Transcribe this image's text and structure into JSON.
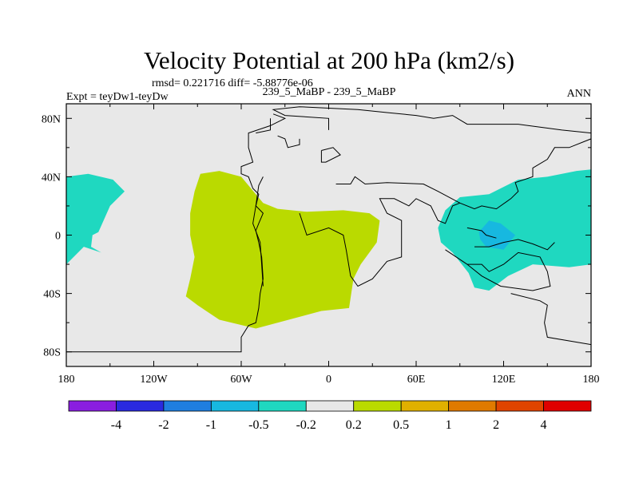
{
  "chart_data": {
    "type": "contour_map",
    "title": "Velocity Potential at 200 hPa (km2/s)",
    "stats": "rmsd= 0.221716  diff= -5.88776e-06",
    "left_label": "Expt = teyDw1-teyDw",
    "center_label": "239_5_MaBP - 239_5_MaBP",
    "right_label": "ANN",
    "x_ticks": [
      {
        "lon": -180,
        "label": "180"
      },
      {
        "lon": -120,
        "label": "120W"
      },
      {
        "lon": -60,
        "label": "60W"
      },
      {
        "lon": 0,
        "label": "0"
      },
      {
        "lon": 60,
        "label": "60E"
      },
      {
        "lon": 120,
        "label": "120E"
      },
      {
        "lon": 180,
        "label": "180"
      }
    ],
    "y_ticks": [
      {
        "lat": 80,
        "label": "80N"
      },
      {
        "lat": 40,
        "label": "40N"
      },
      {
        "lat": 0,
        "label": "0"
      },
      {
        "lat": -40,
        "label": "40S"
      },
      {
        "lat": -80,
        "label": "80S"
      }
    ],
    "xlim": [
      -180,
      180
    ],
    "ylim": [
      -90,
      90
    ],
    "colorbar": {
      "colors": [
        "#8a1ee0",
        "#2a2ae0",
        "#1f7ee0",
        "#17b8e0",
        "#1fd8c0",
        "#e8e8e8",
        "#bada00",
        "#e0b000",
        "#e07a00",
        "#e04400",
        "#e00000"
      ],
      "labels": [
        "-4",
        "-2",
        "-1",
        "-0.5",
        "-0.2",
        "0.2",
        "0.5",
        "1",
        "2",
        "4"
      ]
    },
    "field_colors": {
      "background": "#e8e8e8",
      "positive": "#bada00",
      "negative_weak": "#1fd8c0",
      "negative_mid": "#17b8e0"
    },
    "regions": [
      {
        "name": "positive-anomaly-atlantic",
        "level": "0.2 to 0.5",
        "color": "#bada00",
        "points": [
          [
            -88,
            42
          ],
          [
            -75,
            44
          ],
          [
            -60,
            40
          ],
          [
            -45,
            22
          ],
          [
            -35,
            18
          ],
          [
            -15,
            16
          ],
          [
            10,
            17
          ],
          [
            28,
            15
          ],
          [
            35,
            10
          ],
          [
            33,
            -5
          ],
          [
            22,
            -20
          ],
          [
            17,
            -30
          ],
          [
            14,
            -50
          ],
          [
            -5,
            -52
          ],
          [
            -50,
            -64
          ],
          [
            -75,
            -58
          ],
          [
            -90,
            -48
          ],
          [
            -98,
            -42
          ],
          [
            -95,
            -30
          ],
          [
            -92,
            -15
          ],
          [
            -95,
            0
          ],
          [
            -95,
            15
          ],
          [
            -92,
            30
          ]
        ]
      },
      {
        "name": "negative-anomaly-pacific-west",
        "level": "-0.5 to -0.2",
        "color": "#1fd8c0",
        "points": [
          [
            -180,
            40
          ],
          [
            -165,
            42
          ],
          [
            -148,
            38
          ],
          [
            -140,
            30
          ],
          [
            -150,
            20
          ],
          [
            -158,
            2
          ],
          [
            -162,
            0
          ],
          [
            -163,
            -8
          ],
          [
            -156,
            -12
          ],
          [
            -168,
            -8
          ],
          [
            -180,
            -20
          ]
        ]
      },
      {
        "name": "negative-anomaly-indo-pacific",
        "level": "-0.5 to -0.2",
        "color": "#1fd8c0",
        "points": [
          [
            75,
            5
          ],
          [
            80,
            17
          ],
          [
            90,
            26
          ],
          [
            110,
            28
          ],
          [
            130,
            38
          ],
          [
            150,
            40
          ],
          [
            170,
            44
          ],
          [
            180,
            45
          ],
          [
            180,
            -20
          ],
          [
            165,
            -22
          ],
          [
            140,
            -20
          ],
          [
            123,
            -28
          ],
          [
            110,
            -38
          ],
          [
            100,
            -36
          ],
          [
            96,
            -26
          ],
          [
            85,
            -12
          ],
          [
            77,
            -5
          ]
        ]
      },
      {
        "name": "negative-anomaly-maritime-core",
        "level": "-1 to -0.5",
        "color": "#17b8e0",
        "points": [
          [
            103,
            2
          ],
          [
            110,
            10
          ],
          [
            118,
            8
          ],
          [
            128,
            0
          ],
          [
            120,
            -10
          ],
          [
            108,
            -8
          ],
          [
            104,
            -3
          ]
        ]
      }
    ],
    "coastlines": [
      [
        [
          -180,
          -80
        ],
        [
          -60,
          -80
        ],
        [
          -60,
          -70
        ],
        [
          -55,
          -62
        ],
        [
          -50,
          -60
        ],
        [
          -48,
          -50
        ],
        [
          -47,
          -40
        ],
        [
          -45,
          -30
        ],
        [
          -46,
          -15
        ],
        [
          -48,
          -5
        ],
        [
          -50,
          3
        ],
        [
          -48,
          8
        ],
        [
          -45,
          15
        ],
        [
          -50,
          20
        ],
        [
          -48,
          28
        ],
        [
          -52,
          32
        ],
        [
          -55,
          40
        ],
        [
          -60,
          42
        ],
        [
          -60,
          47
        ],
        [
          -52,
          50
        ],
        [
          -55,
          60
        ],
        [
          -55,
          70
        ],
        [
          -40,
          75
        ],
        [
          -30,
          80
        ],
        [
          -38,
          83
        ]
      ],
      [
        [
          -45,
          40
        ],
        [
          -48,
          34
        ],
        [
          -50,
          20
        ],
        [
          -52,
          8
        ],
        [
          -47,
          -5
        ],
        [
          -46,
          -20
        ],
        [
          -45,
          -35
        ]
      ],
      [
        [
          -50,
          70
        ],
        [
          -40,
          72
        ],
        [
          -40,
          80
        ]
      ],
      [
        [
          -35,
          68
        ],
        [
          -30,
          66
        ],
        [
          -28,
          60
        ],
        [
          -20,
          62
        ],
        [
          -20,
          66
        ]
      ],
      [
        [
          0,
          72
        ],
        [
          0,
          80
        ],
        [
          -30,
          82
        ],
        [
          -38,
          86
        ],
        [
          -20,
          88
        ],
        [
          20,
          86
        ],
        [
          40,
          84
        ],
        [
          60,
          82
        ],
        [
          72,
          80
        ],
        [
          85,
          82
        ],
        [
          95,
          76
        ],
        [
          130,
          76
        ],
        [
          160,
          72
        ],
        [
          180,
          70
        ]
      ],
      [
        [
          -5,
          58
        ],
        [
          -5,
          50
        ],
        [
          -2,
          50
        ],
        [
          8,
          55
        ],
        [
          3,
          60
        ],
        [
          -5,
          58
        ]
      ],
      [
        [
          5,
          35
        ],
        [
          15,
          35
        ],
        [
          18,
          40
        ],
        [
          25,
          35
        ],
        [
          40,
          36
        ],
        [
          65,
          35
        ],
        [
          75,
          30
        ],
        [
          90,
          22
        ],
        [
          100,
          18
        ],
        [
          105,
          20
        ],
        [
          115,
          18
        ],
        [
          125,
          25
        ],
        [
          130,
          30
        ],
        [
          128,
          36
        ],
        [
          140,
          40
        ],
        [
          140,
          46
        ],
        [
          150,
          52
        ],
        [
          155,
          60
        ],
        [
          165,
          60
        ],
        [
          175,
          64
        ],
        [
          180,
          66
        ]
      ],
      [
        [
          -20,
          15
        ],
        [
          -15,
          0
        ],
        [
          0,
          5
        ],
        [
          10,
          0
        ],
        [
          12,
          -10
        ],
        [
          15,
          -28
        ],
        [
          20,
          -35
        ],
        [
          30,
          -30
        ],
        [
          40,
          -18
        ],
        [
          50,
          -15
        ],
        [
          50,
          10
        ],
        [
          40,
          15
        ],
        [
          35,
          25
        ],
        [
          45,
          25
        ],
        [
          55,
          20
        ],
        [
          60,
          25
        ],
        [
          70,
          20
        ],
        [
          75,
          10
        ],
        [
          80,
          8
        ],
        [
          85,
          20
        ],
        [
          90,
          22
        ]
      ],
      [
        [
          80,
          -10
        ],
        [
          95,
          -20
        ],
        [
          105,
          -20
        ],
        [
          110,
          -25
        ],
        [
          120,
          -20
        ],
        [
          130,
          -12
        ],
        [
          145,
          -15
        ],
        [
          150,
          -25
        ],
        [
          152,
          -35
        ],
        [
          140,
          -38
        ],
        [
          118,
          -35
        ],
        [
          105,
          -28
        ],
        [
          95,
          -20
        ]
      ],
      [
        [
          100,
          -8
        ],
        [
          110,
          -8
        ],
        [
          120,
          -5
        ],
        [
          130,
          -3
        ],
        [
          140,
          -6
        ],
        [
          150,
          -10
        ],
        [
          155,
          -5
        ]
      ],
      [
        [
          95,
          5
        ],
        [
          105,
          3
        ],
        [
          108,
          0
        ],
        [
          115,
          -2
        ]
      ],
      [
        [
          125,
          -40
        ],
        [
          145,
          -45
        ],
        [
          150,
          -48
        ],
        [
          148,
          -60
        ],
        [
          150,
          -70
        ],
        [
          180,
          -75
        ]
      ]
    ]
  }
}
